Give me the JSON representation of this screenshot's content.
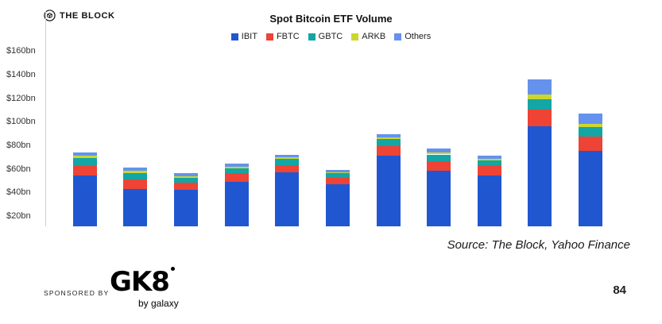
{
  "brand": {
    "name": "THE BLOCK"
  },
  "chart": {
    "title": "Spot Bitcoin ETF Volume"
  },
  "chart_data": {
    "type": "bar",
    "stacked": true,
    "title": "Spot Bitcoin ETF Volume",
    "xlabel": "",
    "ylabel": "",
    "x_axis_labels_visible": false,
    "bar_count": 11,
    "series": [
      {
        "name": "IBIT",
        "color": "#2057d0",
        "values": [
          55,
          44,
          43,
          50,
          58,
          48,
          72,
          59,
          55,
          97,
          76
        ]
      },
      {
        "name": "FBTC",
        "color": "#ee4335",
        "values": [
          8,
          8,
          6,
          7,
          6,
          5,
          8,
          8,
          8,
          14,
          12
        ]
      },
      {
        "name": "GBTC",
        "color": "#14a5a5",
        "values": [
          7,
          5,
          4,
          4,
          5,
          4,
          6,
          6,
          5,
          9,
          8
        ]
      },
      {
        "name": "ARKB",
        "color": "#ccd62e",
        "values": [
          2,
          2,
          1.5,
          1.5,
          1.5,
          1,
          1.5,
          1.5,
          1.5,
          4,
          3
        ]
      },
      {
        "name": "Others",
        "color": "#6592ec",
        "values": [
          3,
          3,
          2.5,
          2.5,
          2.5,
          2,
          2.5,
          3.5,
          2.5,
          13,
          9
        ]
      }
    ],
    "totals_bn": [
      75,
      62,
      57,
      65,
      73,
      60,
      90,
      78,
      72,
      137,
      108
    ],
    "y_tick_values": [
      20,
      40,
      60,
      80,
      100,
      120,
      140,
      160
    ],
    "y_tick_labels": [
      "$20bn",
      "$40bn",
      "$60bn",
      "$80bn",
      "$100bn",
      "$120bn",
      "$140bn",
      "$160bn"
    ],
    "ylim_visible": [
      12,
      167
    ],
    "grid": false,
    "legend_position": "top"
  },
  "footer": {
    "source": "Source: The Block, Yahoo Finance",
    "sponsored_label": "SPONSORED BY",
    "sponsor_logo_text": "GK8",
    "sponsor_logo_subtext": "by galaxy",
    "page_number": "84"
  }
}
